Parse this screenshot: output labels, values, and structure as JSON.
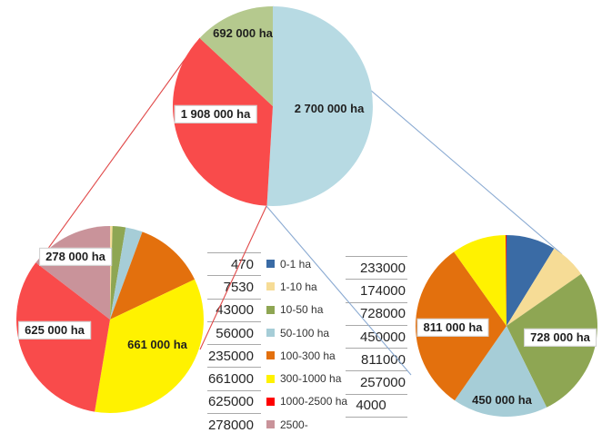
{
  "legend": {
    "items": [
      {
        "label": "0-1 ha",
        "color": "#3a6ba5"
      },
      {
        "label": "1-10 ha",
        "color": "#f6dc96"
      },
      {
        "label": "10-50 ha",
        "color": "#8ea653"
      },
      {
        "label": "50-100 ha",
        "color": "#a6cdd7"
      },
      {
        "label": "100-300 ha",
        "color": "#e3700d"
      },
      {
        "label": "300-1000 ha",
        "color": "#fff200"
      },
      {
        "label": "1000-2500 ha",
        "color": "#fe0000"
      },
      {
        "label": "2500-",
        "color": "#c9939a"
      }
    ]
  },
  "table_left": {
    "rows": [
      "470",
      "7530",
      "43000",
      "56000",
      "235000",
      "661000",
      "625000",
      "278000"
    ]
  },
  "table_right": {
    "rows": [
      "233000",
      "174000",
      "728000",
      "450000",
      "811000",
      "257000",
      "4000"
    ]
  },
  "connector_colors": {
    "red": "#e04848",
    "blue": "#8aaad2"
  },
  "chart_data": [
    {
      "type": "pie",
      "id": "overview",
      "unit": "ha",
      "values": [
        2700000,
        1908000,
        692000
      ],
      "labels": [
        "2 700 000 ha",
        "1 908 000 ha",
        "692 000 ha"
      ],
      "colors": [
        "#b7dae3",
        "#f94b4b",
        "#b5c98e"
      ]
    },
    {
      "type": "pie",
      "id": "breakdown-left",
      "unit": "ha",
      "categories": [
        "0-1 ha",
        "1-10 ha",
        "10-50 ha",
        "50-100 ha",
        "100-300 ha",
        "300-1000 ha",
        "1000-2500 ha",
        "2500-"
      ],
      "values": [
        470,
        7530,
        43000,
        56000,
        235000,
        661000,
        625000,
        278000
      ],
      "labels": [
        null,
        null,
        null,
        null,
        null,
        "661 000 ha",
        "625 000 ha",
        "278 000 ha"
      ],
      "colors": [
        "#3a6ba5",
        "#f6dc96",
        "#8ea653",
        "#a6cdd7",
        "#e3700d",
        "#fff200",
        "#f94b4b",
        "#c9939a"
      ]
    },
    {
      "type": "pie",
      "id": "breakdown-right",
      "unit": "ha",
      "categories": [
        "0-1 ha",
        "1-10 ha",
        "10-50 ha",
        "50-100 ha",
        "100-300 ha",
        "300-1000 ha",
        "1000-2500 ha"
      ],
      "values": [
        233000,
        174000,
        728000,
        450000,
        811000,
        257000,
        4000
      ],
      "labels": [
        null,
        null,
        "728 000 ha",
        "450 000 ha",
        "811 000 ha",
        null,
        null
      ],
      "colors": [
        "#3a6ba5",
        "#f6dc96",
        "#8ea653",
        "#a6cdd7",
        "#e3700d",
        "#fff200",
        "#fe0000"
      ]
    }
  ]
}
